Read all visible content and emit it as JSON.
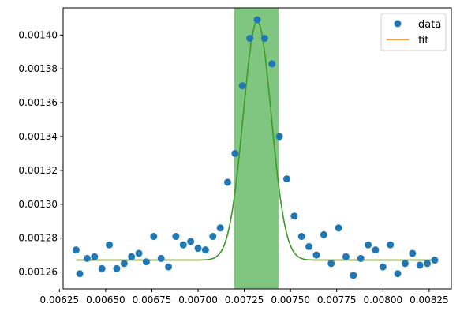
{
  "chart_data": {
    "type": "scatter",
    "title": "",
    "xlabel": "",
    "ylabel": "",
    "xlim": [
      0.00627,
      0.00837
    ],
    "ylim": [
      0.00125,
      0.001416
    ],
    "xticks": [
      0.0065,
      0.00675,
      0.007,
      0.00725,
      0.0075,
      0.00775,
      0.008,
      0.00825
    ],
    "xtick_labels": [
      "0.00650",
      "0.00675",
      "0.00700",
      "0.00725",
      "0.00750",
      "0.00775",
      "0.00800",
      "0.00825"
    ],
    "xtick_minor": [
      0.00625
    ],
    "xtick_minor_label": "0.00625",
    "yticks": [
      0.00126,
      0.00128,
      0.0013,
      0.00132,
      0.00134,
      0.00136,
      0.00138,
      0.0014
    ],
    "ytick_labels": [
      "0.00126",
      "0.00128",
      "0.00130",
      "0.00132",
      "0.00134",
      "0.00136",
      "0.00138",
      "0.00140"
    ],
    "grid": false,
    "legend": {
      "placement": "top-right",
      "entries": [
        {
          "label": "data",
          "kind": "marker",
          "color": "#1f77b4"
        },
        {
          "label": "fit",
          "kind": "line",
          "color": "#ff7f0e"
        }
      ]
    },
    "span": {
      "x0": 0.007195,
      "x1": 0.007435,
      "color": "#2ca02c",
      "alpha": 0.6
    },
    "model": {
      "kind": "gaussian",
      "baseline": 0.001267,
      "amplitude": 0.000141,
      "center": 0.00732,
      "sigma": 7.6e-05
    },
    "series": [
      {
        "name": "data",
        "kind": "scatter",
        "color": "#1f77b4",
        "x": [
          0.00634,
          0.00636,
          0.0064,
          0.00644,
          0.00648,
          0.00652,
          0.00656,
          0.0066,
          0.00664,
          0.00668,
          0.00672,
          0.00676,
          0.0068,
          0.00684,
          0.00688,
          0.00692,
          0.00696,
          0.007,
          0.00704,
          0.00708,
          0.00712,
          0.00716,
          0.0072,
          0.00724,
          0.00728,
          0.00732,
          0.00736,
          0.0074,
          0.00744,
          0.00748,
          0.00752,
          0.00756,
          0.0076,
          0.00764,
          0.00768,
          0.00772,
          0.00776,
          0.0078,
          0.00784,
          0.00788,
          0.00792,
          0.00796,
          0.008,
          0.00804,
          0.00808,
          0.00812,
          0.00816,
          0.0082,
          0.00824,
          0.00828
        ],
        "y": [
          0.001273,
          0.001259,
          0.001268,
          0.001269,
          0.001262,
          0.001276,
          0.001262,
          0.001265,
          0.001269,
          0.001271,
          0.001266,
          0.001281,
          0.001268,
          0.001263,
          0.001281,
          0.001276,
          0.001278,
          0.001274,
          0.001273,
          0.001281,
          0.001286,
          0.001313,
          0.00133,
          0.00137,
          0.001398,
          0.001409,
          0.001398,
          0.001383,
          0.00134,
          0.001315,
          0.001293,
          0.001281,
          0.001275,
          0.00127,
          0.001282,
          0.001265,
          0.001286,
          0.001269,
          0.001258,
          0.001268,
          0.001276,
          0.001273,
          0.001263,
          0.001276,
          0.001259,
          0.001265,
          0.001271,
          0.001264,
          0.001265,
          0.001267
        ]
      },
      {
        "name": "fit",
        "kind": "line",
        "color": "#ff7f0e"
      },
      {
        "kind": "line",
        "color": "#2ca02c"
      }
    ]
  }
}
